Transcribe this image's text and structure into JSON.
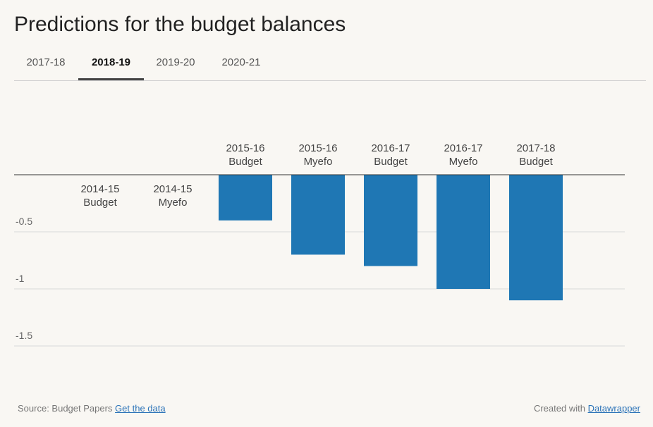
{
  "title": "Predictions for the budget balances",
  "tabs": [
    {
      "label": "2017-18",
      "active": false
    },
    {
      "label": "2018-19",
      "active": true
    },
    {
      "label": "2019-20",
      "active": false
    },
    {
      "label": "2020-21",
      "active": false
    }
  ],
  "chart_data": {
    "type": "bar",
    "categories": [
      [
        "2014-15",
        "Budget"
      ],
      [
        "2014-15",
        "Myefo"
      ],
      [
        "2015-16",
        "Budget"
      ],
      [
        "2015-16",
        "Myefo"
      ],
      [
        "2016-17",
        "Budget"
      ],
      [
        "2016-17",
        "Myefo"
      ],
      [
        "2017-18",
        "Budget"
      ]
    ],
    "values": [
      0,
      0,
      -0.4,
      -0.7,
      -0.8,
      -1.0,
      -1.1
    ],
    "yticks": [
      {
        "value": -0.5,
        "label": "-0.5"
      },
      {
        "value": -1,
        "label": "-1"
      },
      {
        "value": -1.5,
        "label": "-1.5"
      }
    ],
    "ylim": [
      -1.8,
      0.6
    ],
    "grid": true,
    "bar_color": "#1f77b4"
  },
  "footer": {
    "source_prefix": "Source: Budget Papers",
    "data_link": "Get the data",
    "created_prefix": "Created with",
    "created_link": "Datawrapper"
  }
}
